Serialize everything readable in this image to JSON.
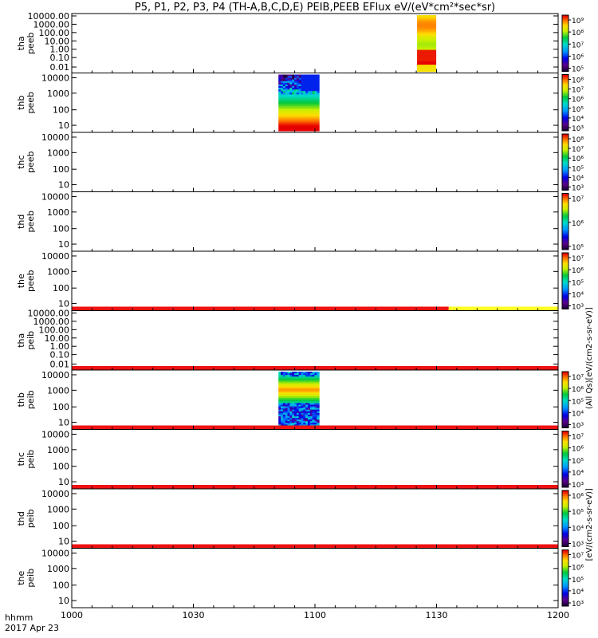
{
  "title": "P5, P1, P2, P3, P4 (TH-A,B,C,D,E) PEIB,PEEB EFlux eV/(eV*cm²*sec*sr)",
  "footer": {
    "line1": "hhmm",
    "line2": "2017 Apr 23"
  },
  "chart_data": {
    "type": "heatmap",
    "x_ticks": [
      "1000",
      "1030",
      "1100",
      "1130",
      "1200"
    ],
    "panels": [
      {
        "ylabel1": "tha",
        "ylabel2": "peeb",
        "yticks": [
          "10000.00",
          "1000.00",
          "100.00",
          "10.00",
          "1.00",
          "0.10",
          "0.01"
        ],
        "ytick_frac": [
          0.04,
          0.18,
          0.32,
          0.46,
          0.6,
          0.74,
          0.9
        ],
        "cb_ticks": [
          "10⁹",
          "10⁸",
          "10⁷",
          "10⁶",
          "10⁵"
        ],
        "spectro": [
          {
            "x0": 1125.2,
            "x1": 1129.8,
            "kind": "hot-column"
          }
        ]
      },
      {
        "ylabel1": "thb",
        "ylabel2": "peeb",
        "yticks": [
          "10000",
          "1000",
          "100",
          "10"
        ],
        "ytick_frac": [
          0.08,
          0.34,
          0.62,
          0.88
        ],
        "cb_ticks": [
          "10⁸",
          "10⁷",
          "10⁶",
          "10⁵",
          "10⁴",
          "10³"
        ],
        "spectro": [
          {
            "x0": 1051,
            "x1": 1061,
            "kind": "electron-spectrum"
          }
        ]
      },
      {
        "ylabel1": "thc",
        "ylabel2": "peeb",
        "yticks": [
          "10000",
          "1000",
          "100",
          "10"
        ],
        "ytick_frac": [
          0.08,
          0.34,
          0.62,
          0.88
        ],
        "cb_ticks": [
          "10⁸",
          "10⁷",
          "10⁶",
          "10⁵",
          "10⁴",
          "10³"
        ],
        "spectro": []
      },
      {
        "ylabel1": "thd",
        "ylabel2": "peeb",
        "yticks": [
          "10000",
          "1000",
          "100",
          "10"
        ],
        "ytick_frac": [
          0.08,
          0.34,
          0.62,
          0.88
        ],
        "cb_ticks": [
          "10⁷",
          "10⁶",
          "10⁵"
        ],
        "spectro": []
      },
      {
        "ylabel1": "the",
        "ylabel2": "peeb",
        "yticks": [
          "10000",
          "1000",
          "100",
          "10"
        ],
        "ytick_frac": [
          0.08,
          0.34,
          0.62,
          0.88
        ],
        "cb_ticks": [
          "10⁷",
          "10⁶",
          "10⁵",
          "10⁴",
          "10³"
        ],
        "spectro": [],
        "bottom_band": {
          "kind": "red-yellow",
          "split": 1133
        }
      },
      {
        "ylabel1": "tha",
        "ylabel2": "peib",
        "yticks": [
          "10000.00",
          "1000.00",
          "100.00",
          "10.00",
          "1.00",
          "0.10",
          "0.01"
        ],
        "ytick_frac": [
          0.04,
          0.18,
          0.32,
          0.46,
          0.6,
          0.74,
          0.9
        ],
        "cb_ticks": [],
        "spectro": [],
        "bottom_band": {
          "kind": "red"
        }
      },
      {
        "ylabel1": "thb",
        "ylabel2": "peib",
        "yticks": [
          "10000",
          "1000",
          "100",
          "10"
        ],
        "ytick_frac": [
          0.08,
          0.34,
          0.62,
          0.88
        ],
        "cb_ticks": [
          "10⁷",
          "10⁶",
          "10⁵",
          "10⁴",
          "10³"
        ],
        "spectro": [
          {
            "x0": 1051,
            "x1": 1061,
            "kind": "ion-spectrum"
          }
        ],
        "bottom_band": {
          "kind": "red"
        }
      },
      {
        "ylabel1": "thc",
        "ylabel2": "peib",
        "yticks": [
          "10000",
          "1000",
          "100",
          "10"
        ],
        "ytick_frac": [
          0.08,
          0.34,
          0.62,
          0.88
        ],
        "cb_ticks": [
          "10⁷",
          "10⁶",
          "10⁵",
          "10⁴",
          "10³"
        ],
        "spectro": [],
        "bottom_band": {
          "kind": "red"
        }
      },
      {
        "ylabel1": "thd",
        "ylabel2": "peib",
        "yticks": [
          "10000",
          "1000",
          "100",
          "10"
        ],
        "ytick_frac": [
          0.08,
          0.34,
          0.62,
          0.88
        ],
        "cb_ticks": [
          "10⁶",
          "10⁵",
          "10⁴",
          "10³"
        ],
        "spectro": [],
        "bottom_band": {
          "kind": "red"
        }
      },
      {
        "ylabel1": "the",
        "ylabel2": "peib",
        "yticks": [
          "10000",
          "1000",
          "100",
          "10"
        ],
        "ytick_frac": [
          0.08,
          0.34,
          0.62,
          0.88
        ],
        "cb_ticks": [
          "10⁷",
          "10⁶",
          "10⁵",
          "10⁴",
          "10³"
        ],
        "spectro": []
      }
    ],
    "colorbar_label_electron": "(All Qs)[eV/(cm2-s-sr-eV)]",
    "colorbar_label_ion": "[eV/(cm2-s-sr-eV)]"
  }
}
